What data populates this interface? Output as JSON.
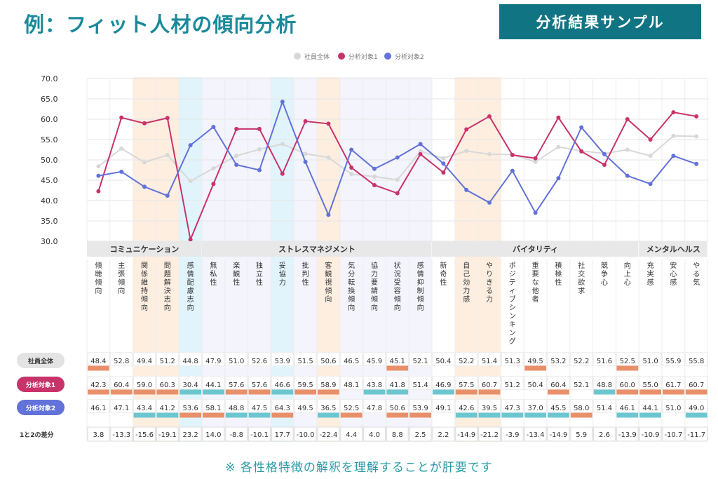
{
  "page_title": "例：フィット人材の傾向分析",
  "badge": "分析結果サンプル",
  "footnote": "※ 各性格特徴の解釈を理解することが肝要です",
  "colors": {
    "total": "#d8d8d8",
    "target1": "#c8336a",
    "target2": "#6272d8",
    "highlight_orange": "#fdeee0",
    "highlight_blue": "#e2f4fb",
    "highlight_lavender": "#f3f4fc",
    "marker_orange": "#e8906a",
    "marker_teal": "#6cc6cf",
    "title": "#1a8a9a",
    "badge_bg": "#117483"
  },
  "chart_data": {
    "type": "line",
    "ylim": [
      30,
      70
    ],
    "yticks": [
      "30.0",
      "35.0",
      "40.0",
      "45.0",
      "50.0",
      "55.0",
      "60.0",
      "65.0",
      "70.0"
    ],
    "legend_position": "top",
    "categories": [
      "傾聴傾向",
      "主張傾向",
      "関係維持傾向",
      "問題解決志向",
      "感情配慮志向",
      "無私性",
      "楽観性",
      "独立性",
      "妥協力",
      "批判性",
      "客観視傾向",
      "気分転換傾向",
      "協力要請傾向",
      "状況受容傾向",
      "感情抑制傾向",
      "新奇性",
      "自己効力感",
      "やりきる力",
      "ポジティブシンキング",
      "重要な他者",
      "積極性",
      "社交欲求",
      "競争心",
      "向上心",
      "充実感",
      "安心感",
      "やる気"
    ],
    "column_highlight": [
      "none",
      "none",
      "orange",
      "orange",
      "blue",
      "lavender",
      "lavender",
      "lavender",
      "blue",
      "lavender",
      "orange",
      "lavender",
      "lavender",
      "lavender",
      "lavender",
      "none",
      "orange",
      "orange",
      "none",
      "none",
      "none",
      "none",
      "none",
      "none",
      "none",
      "none",
      "none"
    ],
    "groups": [
      {
        "label": "コミュニケーション",
        "start": 0,
        "end": 4
      },
      {
        "label": "ストレスマネジメント",
        "start": 5,
        "end": 14
      },
      {
        "label": "バイタリティ",
        "start": 15,
        "end": 23
      },
      {
        "label": "メンタルヘルス",
        "start": 24,
        "end": 26
      }
    ],
    "series": [
      {
        "name": "社員全体",
        "key": "total",
        "values": [
          "48.4",
          "52.8",
          "49.4",
          "51.2",
          "44.8",
          "47.9",
          "51.0",
          "52.6",
          "53.9",
          "51.5",
          "50.6",
          "46.5",
          "45.9",
          "45.1",
          "52.1",
          "50.4",
          "52.2",
          "51.4",
          "51.3",
          "49.5",
          "53.2",
          "52.2",
          "51.6",
          "52.5",
          "51.0",
          "55.9",
          "55.8"
        ],
        "markers": [
          "orange",
          "none",
          "none",
          "none",
          "none",
          "none",
          "none",
          "none",
          "none",
          "none",
          "none",
          "none",
          "none",
          "orange",
          "none",
          "none",
          "none",
          "none",
          "none",
          "orange",
          "none",
          "none",
          "none",
          "orange",
          "none",
          "none",
          "none"
        ]
      },
      {
        "name": "分析対象1",
        "key": "target1",
        "values": [
          "42.3",
          "60.4",
          "59.0",
          "60.3",
          "30.4",
          "44.1",
          "57.6",
          "57.6",
          "46.6",
          "59.5",
          "58.9",
          "48.1",
          "43.8",
          "41.8",
          "51.4",
          "46.9",
          "57.5",
          "60.7",
          "51.2",
          "50.4",
          "60.4",
          "52.1",
          "48.8",
          "60.0",
          "55.0",
          "61.7",
          "60.7"
        ],
        "markers": [
          "orange",
          "orange",
          "orange",
          "orange",
          "teal",
          "teal",
          "orange",
          "orange",
          "teal",
          "orange",
          "orange",
          "none",
          "teal",
          "teal",
          "none",
          "teal",
          "orange",
          "orange",
          "none",
          "none",
          "orange",
          "none",
          "teal",
          "orange",
          "orange",
          "orange",
          "orange"
        ]
      },
      {
        "name": "分析対象2",
        "key": "target2",
        "values": [
          "46.1",
          "47.1",
          "43.4",
          "41.2",
          "53.6",
          "58.1",
          "48.8",
          "47.5",
          "64.3",
          "49.5",
          "36.5",
          "52.5",
          "47.8",
          "50.6",
          "53.9",
          "49.1",
          "42.6",
          "39.5",
          "47.3",
          "37.0",
          "45.5",
          "58.0",
          "51.4",
          "46.1",
          "44.1",
          "51.0",
          "49.0"
        ],
        "markers": [
          "none",
          "none",
          "teal",
          "teal",
          "orange",
          "orange",
          "teal",
          "teal",
          "orange",
          "none",
          "teal",
          "orange",
          "none",
          "orange",
          "orange",
          "none",
          "teal",
          "teal",
          "teal",
          "teal",
          "teal",
          "orange",
          "none",
          "teal",
          "teal",
          "none",
          "teal"
        ]
      }
    ],
    "diff_label": "1と2の差分",
    "diff": [
      "3.8",
      "-13.3",
      "-15.6",
      "-19.1",
      "23.2",
      "14.0",
      "-8.8",
      "-10.1",
      "17.7",
      "-10.0",
      "-22.4",
      "4.4",
      "4.0",
      "8.8",
      "2.5",
      "2.2",
      "-14.9",
      "-21.2",
      "-3.9",
      "-13.4",
      "-14.9",
      "5.9",
      "2.6",
      "-13.9",
      "-10.9",
      "-10.7",
      "-11.7"
    ]
  }
}
